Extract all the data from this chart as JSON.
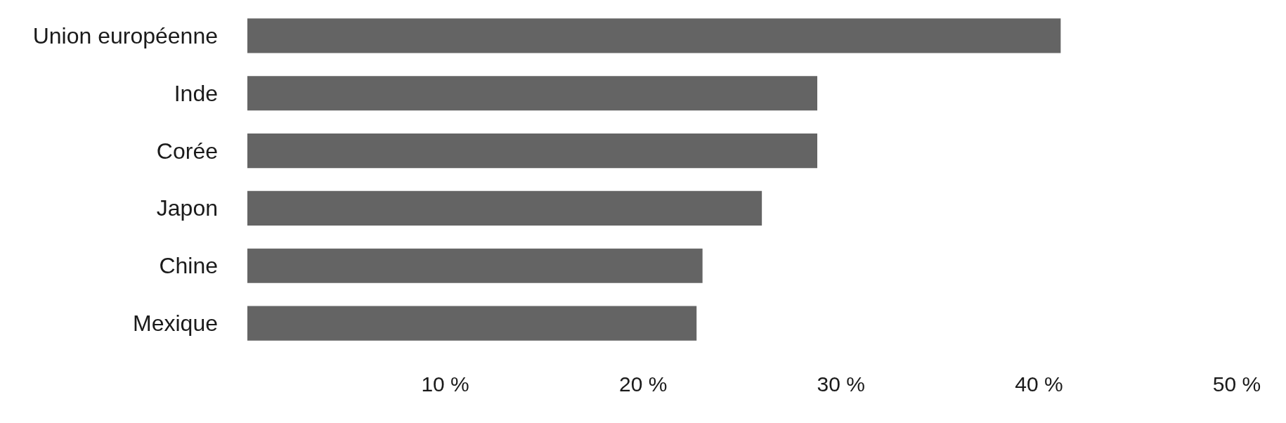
{
  "chart_data": {
    "type": "bar",
    "orientation": "horizontal",
    "categories": [
      "Union européenne",
      "Inde",
      "Corée",
      "Japon",
      "Chine",
      "Mexique"
    ],
    "values": [
      41.1,
      28.8,
      28.8,
      26.0,
      23.0,
      22.7
    ],
    "color": "#646464",
    "xlim": [
      0,
      50
    ],
    "xticks": [
      {
        "value": 10,
        "label": "10 %"
      },
      {
        "value": 20,
        "label": "20 %"
      },
      {
        "value": 30,
        "label": "30 %"
      },
      {
        "value": 40,
        "label": "40 %"
      },
      {
        "value": 50,
        "label": "50 %"
      }
    ],
    "grid": false
  }
}
